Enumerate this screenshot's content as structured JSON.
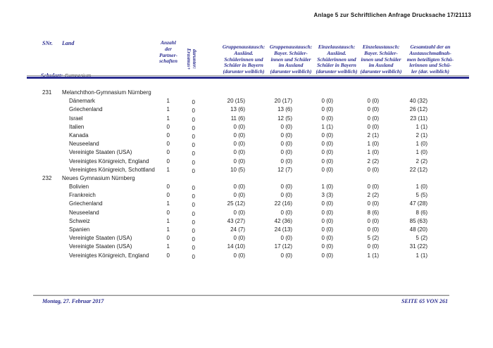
{
  "page": {
    "title": "Anlage 5 zur Schriftlichen Anfrage Drucksache 17/21113",
    "footer": {
      "date": "Montag, 27. Februar 2017",
      "page_info": "SEITE 65 VON 261"
    }
  },
  "colors": {
    "accent_navy": "#2b2d8f",
    "body_text": "#1c1c1c",
    "rule_gray": "#9a9a9a"
  },
  "table": {
    "header": {
      "snr": "SNr.",
      "land": "Land",
      "schulart_label": "Schulart:",
      "schulart_value": "Gymnasium",
      "partnerschaften": "Anzahl\nder\nPartner-\nschaften",
      "erasmus_rotated": "darunter:\nErasmus+",
      "gruppen_ausland": "Gruppenaustausch:\nAusländ.\nSchülerinnen und\nSchüler in Bayern\n(darunter weiblich)",
      "gruppen_bayern": "Gruppenaustausch:\nBayer. Schüler-\ninnen und Schüler\nim Ausland\n(darunter weiblich)",
      "einzel_ausland": "Einzelaustausch:\nAusländ.\nSchülerinnen und\nSchüler in Bayern\n(darunter weiblich)",
      "einzel_bayern": "Einzelaustausch:\nBayer. Schüler-\ninnen und Schüler\nim Ausland\n(darunter weiblich)",
      "gesamt": "Gesamtzahl der an\nAustauschmaßnah-\nmen beteiligten Schü-\nlerinnen und Schü-\nler (dar. weiblich)"
    },
    "sections": [
      {
        "snr": "231",
        "school": "Melanchthon-Gymnasium Nürnberg",
        "rows": [
          {
            "land": "Dänemark",
            "anzahl": "1",
            "erasmus": "0",
            "g_ausl": "20 (15)",
            "g_bay": "20 (17)",
            "e_ausl": "0 (0)",
            "e_bay": "0 (0)",
            "gesamt": "40 (32)"
          },
          {
            "land": "Griechenland",
            "anzahl": "1",
            "erasmus": "0",
            "g_ausl": "13 (6)",
            "g_bay": "13 (6)",
            "e_ausl": "0 (0)",
            "e_bay": "0 (0)",
            "gesamt": "26 (12)"
          },
          {
            "land": "Israel",
            "anzahl": "1",
            "erasmus": "0",
            "g_ausl": "11 (6)",
            "g_bay": "12 (5)",
            "e_ausl": "0 (0)",
            "e_bay": "0 (0)",
            "gesamt": "23 (11)"
          },
          {
            "land": "Italien",
            "anzahl": "0",
            "erasmus": "0",
            "g_ausl": "0 (0)",
            "g_bay": "0 (0)",
            "e_ausl": "1 (1)",
            "e_bay": "0 (0)",
            "gesamt": "1 (1)"
          },
          {
            "land": "Kanada",
            "anzahl": "0",
            "erasmus": "0",
            "g_ausl": "0 (0)",
            "g_bay": "0 (0)",
            "e_ausl": "0 (0)",
            "e_bay": "2 (1)",
            "gesamt": "2 (1)"
          },
          {
            "land": "Neuseeland",
            "anzahl": "0",
            "erasmus": "0",
            "g_ausl": "0 (0)",
            "g_bay": "0 (0)",
            "e_ausl": "0 (0)",
            "e_bay": "1 (0)",
            "gesamt": "1 (0)"
          },
          {
            "land": "Vereinigte Staaten (USA)",
            "anzahl": "0",
            "erasmus": "0",
            "g_ausl": "0 (0)",
            "g_bay": "0 (0)",
            "e_ausl": "0 (0)",
            "e_bay": "1 (0)",
            "gesamt": "1 (0)"
          },
          {
            "land": "Vereinigtes Königreich, England",
            "anzahl": "0",
            "erasmus": "0",
            "g_ausl": "0 (0)",
            "g_bay": "0 (0)",
            "e_ausl": "0 (0)",
            "e_bay": "2 (2)",
            "gesamt": "2 (2)"
          },
          {
            "land": "Vereinigtes Königreich, Schottland",
            "anzahl": "1",
            "erasmus": "0",
            "g_ausl": "10 (5)",
            "g_bay": "12 (7)",
            "e_ausl": "0 (0)",
            "e_bay": "0 (0)",
            "gesamt": "22 (12)"
          }
        ]
      },
      {
        "snr": "232",
        "school": "Neues Gymnasium Nürnberg",
        "rows": [
          {
            "land": "Bolivien",
            "anzahl": "0",
            "erasmus": "0",
            "g_ausl": "0 (0)",
            "g_bay": "0 (0)",
            "e_ausl": "1 (0)",
            "e_bay": "0 (0)",
            "gesamt": "1 (0)"
          },
          {
            "land": "Frankreich",
            "anzahl": "0",
            "erasmus": "0",
            "g_ausl": "0 (0)",
            "g_bay": "0 (0)",
            "e_ausl": "3 (3)",
            "e_bay": "2 (2)",
            "gesamt": "5 (5)"
          },
          {
            "land": "Griechenland",
            "anzahl": "1",
            "erasmus": "0",
            "g_ausl": "25 (12)",
            "g_bay": "22 (16)",
            "e_ausl": "0 (0)",
            "e_bay": "0 (0)",
            "gesamt": "47 (28)"
          },
          {
            "land": "Neuseeland",
            "anzahl": "0",
            "erasmus": "0",
            "g_ausl": "0 (0)",
            "g_bay": "0 (0)",
            "e_ausl": "0 (0)",
            "e_bay": "8 (6)",
            "gesamt": "8 (6)"
          },
          {
            "land": "Schweiz",
            "anzahl": "1",
            "erasmus": "0",
            "g_ausl": "43 (27)",
            "g_bay": "42 (36)",
            "e_ausl": "0 (0)",
            "e_bay": "0 (0)",
            "gesamt": "85 (63)"
          },
          {
            "land": "Spanien",
            "anzahl": "1",
            "erasmus": "0",
            "g_ausl": "24 (7)",
            "g_bay": "24 (13)",
            "e_ausl": "0 (0)",
            "e_bay": "0 (0)",
            "gesamt": "48 (20)"
          },
          {
            "land": "Vereinigte Staaten (USA)",
            "anzahl": "0",
            "erasmus": "0",
            "g_ausl": "0 (0)",
            "g_bay": "0 (0)",
            "e_ausl": "0 (0)",
            "e_bay": "5 (2)",
            "gesamt": "5 (2)"
          },
          {
            "land": "Vereinigte Staaten (USA)",
            "anzahl": "1",
            "erasmus": "0",
            "g_ausl": "14 (10)",
            "g_bay": "17 (12)",
            "e_ausl": "0 (0)",
            "e_bay": "0 (0)",
            "gesamt": "31 (22)"
          },
          {
            "land": "Vereinigtes Königreich, England",
            "anzahl": "0",
            "erasmus": "0",
            "g_ausl": "0 (0)",
            "g_bay": "0 (0)",
            "e_ausl": "0 (0)",
            "e_bay": "1 (1)",
            "gesamt": "1 (1)"
          }
        ]
      }
    ]
  }
}
